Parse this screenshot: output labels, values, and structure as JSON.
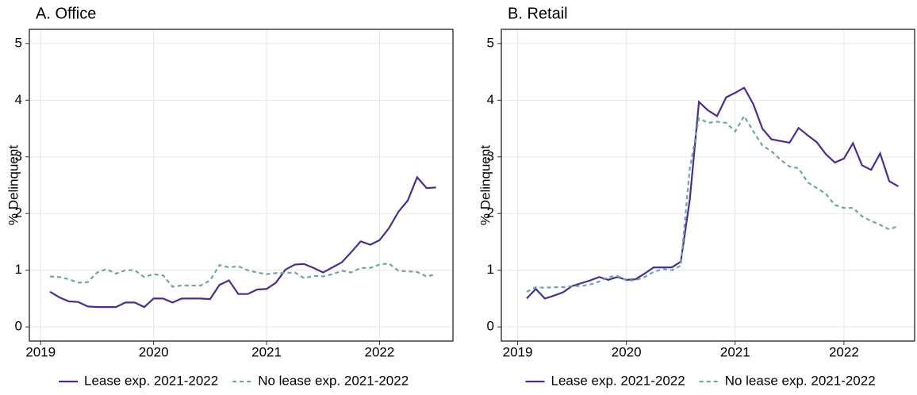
{
  "chart_data": [
    {
      "type": "line",
      "title": "A. Office",
      "y_label": "% Delinquent",
      "x": [
        2019.083,
        2019.167,
        2019.25,
        2019.333,
        2019.417,
        2019.5,
        2019.583,
        2019.667,
        2019.75,
        2019.833,
        2019.917,
        2020,
        2020.083,
        2020.167,
        2020.25,
        2020.333,
        2020.417,
        2020.5,
        2020.583,
        2020.667,
        2020.75,
        2020.833,
        2020.917,
        2021,
        2021.083,
        2021.167,
        2021.25,
        2021.333,
        2021.417,
        2021.5,
        2021.583,
        2021.667,
        2021.75,
        2021.833,
        2021.917,
        2022,
        2022.083,
        2022.167,
        2022.25,
        2022.333,
        2022.417,
        2022.5
      ],
      "series": [
        {
          "name": "Lease exp. 2021-2022",
          "color": "#4b2c91",
          "dashed": false,
          "values": [
            0.62,
            0.52,
            0.45,
            0.44,
            0.36,
            0.35,
            0.35,
            0.35,
            0.43,
            0.43,
            0.35,
            0.5,
            0.5,
            0.43,
            0.5,
            0.5,
            0.5,
            0.49,
            0.74,
            0.82,
            0.58,
            0.58,
            0.66,
            0.67,
            0.78,
            1.01,
            1.1,
            1.11,
            1.04,
            0.96,
            1.05,
            1.14,
            1.32,
            1.51,
            1.45,
            1.53,
            1.74,
            2.03,
            2.23,
            2.64,
            2.45,
            2.46
          ]
        },
        {
          "name": "No lease exp. 2021-2022",
          "color": "#6aa6a6",
          "dashed": true,
          "values": [
            0.89,
            0.88,
            0.84,
            0.78,
            0.79,
            0.96,
            1.02,
            0.94,
            1.0,
            1.0,
            0.88,
            0.93,
            0.91,
            0.71,
            0.73,
            0.73,
            0.73,
            0.82,
            1.09,
            1.05,
            1.07,
            1.0,
            0.96,
            0.93,
            0.95,
            0.95,
            0.96,
            0.86,
            0.9,
            0.89,
            0.93,
            0.99,
            0.96,
            1.04,
            1.04,
            1.1,
            1.12,
            0.99,
            0.98,
            0.97,
            0.89,
            0.93
          ]
        }
      ],
      "xlim": [
        2018.9,
        2022.65
      ],
      "xticks": [
        2019,
        2020,
        2021,
        2022
      ],
      "ylim": [
        -0.25,
        5.25
      ],
      "yticks": [
        0,
        1,
        2,
        3,
        4,
        5
      ],
      "grid": true
    },
    {
      "type": "line",
      "title": "B. Retail",
      "y_label": "% Delinquent",
      "x": [
        2019.083,
        2019.167,
        2019.25,
        2019.333,
        2019.417,
        2019.5,
        2019.583,
        2019.667,
        2019.75,
        2019.833,
        2019.917,
        2020,
        2020.083,
        2020.167,
        2020.25,
        2020.333,
        2020.417,
        2020.5,
        2020.583,
        2020.667,
        2020.75,
        2020.833,
        2020.917,
        2021,
        2021.083,
        2021.167,
        2021.25,
        2021.333,
        2021.417,
        2021.5,
        2021.583,
        2021.667,
        2021.75,
        2021.833,
        2021.917,
        2022,
        2022.083,
        2022.167,
        2022.25,
        2022.333,
        2022.417,
        2022.5
      ],
      "series": [
        {
          "name": "Lease exp. 2021-2022",
          "color": "#4b2c91",
          "dashed": false,
          "values": [
            0.5,
            0.67,
            0.5,
            0.55,
            0.61,
            0.72,
            0.77,
            0.82,
            0.88,
            0.83,
            0.88,
            0.83,
            0.84,
            0.94,
            1.05,
            1.05,
            1.05,
            1.15,
            2.25,
            3.97,
            3.82,
            3.72,
            4.05,
            4.13,
            4.22,
            3.93,
            3.5,
            3.31,
            3.28,
            3.25,
            3.51,
            3.38,
            3.26,
            3.05,
            2.9,
            2.97,
            3.24,
            2.85,
            2.77,
            3.06,
            2.57,
            2.48
          ]
        },
        {
          "name": "No lease exp. 2021-2022",
          "color": "#6aa6a6",
          "dashed": true,
          "values": [
            0.62,
            0.7,
            0.69,
            0.7,
            0.7,
            0.72,
            0.72,
            0.75,
            0.8,
            0.88,
            0.9,
            0.82,
            0.82,
            0.88,
            0.97,
            1.02,
            1.0,
            1.08,
            2.8,
            3.68,
            3.6,
            3.62,
            3.6,
            3.45,
            3.72,
            3.45,
            3.2,
            3.1,
            2.95,
            2.83,
            2.8,
            2.55,
            2.45,
            2.35,
            2.15,
            2.1,
            2.1,
            1.95,
            1.87,
            1.8,
            1.72,
            1.78
          ]
        }
      ],
      "xlim": [
        2018.85,
        2022.65
      ],
      "xticks": [
        2019,
        2020,
        2021,
        2022
      ],
      "ylim": [
        -0.25,
        5.25
      ],
      "yticks": [
        0,
        1,
        2,
        3,
        4,
        5
      ],
      "grid": true
    }
  ]
}
